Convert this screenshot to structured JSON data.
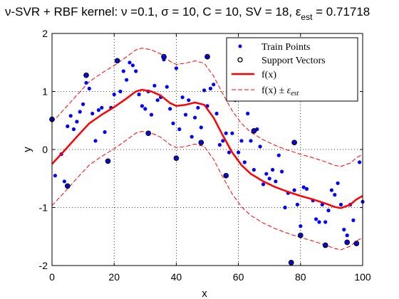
{
  "chart_data": {
    "type": "scatter",
    "title": "ν-SVR + RBF kernel: ν =0.1, σ = 10, C = 10, SV = 18, ε",
    "title_sub": "est",
    "title_tail": " = 0.71718",
    "xlabel": "x",
    "ylabel": "y",
    "xlim": [
      0,
      100
    ],
    "ylim": [
      -2,
      2
    ],
    "xticks": [
      0,
      20,
      40,
      60,
      80,
      100
    ],
    "yticks": [
      -2,
      -1,
      0,
      1,
      2
    ],
    "grid": true,
    "legend_position": "top-right",
    "colors": {
      "train": "#0000ff",
      "support": "#000000",
      "fx": "#ff0000",
      "band": "#ff0000",
      "grid": "#000000"
    },
    "legend": [
      {
        "label": "Train Points",
        "marker": "dot"
      },
      {
        "label": "Support Vectors",
        "marker": "circle"
      },
      {
        "label": "f(x)",
        "marker": "line"
      },
      {
        "label_main": "f(x) ± ",
        "label_eps": "ε",
        "label_sub": "est",
        "marker": "dashed"
      }
    ],
    "epsilon": 0.71718,
    "series": [
      {
        "name": "Train Points",
        "type": "scatter",
        "points": [
          [
            1,
            -0.45
          ],
          [
            3,
            -0.08
          ],
          [
            4,
            -0.55
          ],
          [
            5,
            0.4
          ],
          [
            6,
            0.58
          ],
          [
            7,
            0.35
          ],
          [
            8,
            0.48
          ],
          [
            9,
            0.65
          ],
          [
            10,
            0.78
          ],
          [
            11,
            1.15
          ],
          [
            12,
            1.05
          ],
          [
            13,
            0.62
          ],
          [
            14,
            0.15
          ],
          [
            15,
            0.68
          ],
          [
            16,
            0.72
          ],
          [
            17,
            0.3
          ],
          [
            19,
            0.72
          ],
          [
            20,
            0.95
          ],
          [
            22,
            1.0
          ],
          [
            23,
            1.35
          ],
          [
            24,
            1.2
          ],
          [
            25,
            1.5
          ],
          [
            26,
            1.45
          ],
          [
            27,
            1.35
          ],
          [
            28,
            0.95
          ],
          [
            29,
            0.75
          ],
          [
            30,
            0.7
          ],
          [
            31,
            1.0
          ],
          [
            32,
            0.6
          ],
          [
            33,
            1.1
          ],
          [
            34,
            0.85
          ],
          [
            35,
            0.9
          ],
          [
            36,
            1.55
          ],
          [
            37,
            1.08
          ],
          [
            38,
            0.7
          ],
          [
            39,
            0.45
          ],
          [
            40,
            1.4
          ],
          [
            41,
            0.35
          ],
          [
            42,
            0.9
          ],
          [
            43,
            0.6
          ],
          [
            44,
            0.85
          ],
          [
            45,
            0.22
          ],
          [
            46,
            0.55
          ],
          [
            47,
            0.72
          ],
          [
            48,
            0.38
          ],
          [
            49,
            1.02
          ],
          [
            50,
            0.75
          ],
          [
            51,
            1.05
          ],
          [
            52,
            1.12
          ],
          [
            53,
            0.62
          ],
          [
            54,
            0.08
          ],
          [
            55,
            0.15
          ],
          [
            56,
            0.28
          ],
          [
            57,
            -0.05
          ],
          [
            58,
            0.28
          ],
          [
            59,
            0.85
          ],
          [
            60,
            -0.05
          ],
          [
            61,
            0.15
          ],
          [
            62,
            -0.22
          ],
          [
            63,
            0.62
          ],
          [
            64,
            0.15
          ],
          [
            65,
            -0.35
          ],
          [
            66,
            0.35
          ],
          [
            67,
            0.05
          ],
          [
            68,
            -0.6
          ],
          [
            69,
            -0.42
          ],
          [
            70,
            -0.5
          ],
          [
            71,
            -0.35
          ],
          [
            72,
            -0.55
          ],
          [
            73,
            -0.1
          ],
          [
            74,
            -0.38
          ],
          [
            75,
            -1.0
          ],
          [
            76,
            -0.75
          ],
          [
            78,
            -0.7
          ],
          [
            79,
            -0.95
          ],
          [
            80,
            -1.32
          ],
          [
            81,
            -0.65
          ],
          [
            82,
            -0.68
          ],
          [
            84,
            -0.88
          ],
          [
            85,
            -1.2
          ],
          [
            86,
            -1.25
          ],
          [
            87,
            -0.95
          ],
          [
            88,
            -1.25
          ],
          [
            89,
            -1.05
          ],
          [
            90,
            -0.7
          ],
          [
            91,
            -0.78
          ],
          [
            92,
            -0.58
          ],
          [
            93,
            -0.95
          ],
          [
            94,
            -1.38
          ],
          [
            95,
            -1.48
          ],
          [
            96,
            -0.95
          ],
          [
            97,
            -1.22
          ],
          [
            99,
            -0.22
          ],
          [
            100,
            -0.9
          ]
        ]
      },
      {
        "name": "Support Vectors",
        "type": "scatter",
        "points": [
          [
            0,
            0.52
          ],
          [
            5,
            -0.63
          ],
          [
            11,
            1.28
          ],
          [
            18,
            -0.2
          ],
          [
            21,
            1.53
          ],
          [
            31,
            0.28
          ],
          [
            36,
            1.6
          ],
          [
            40,
            -0.15
          ],
          [
            48,
            0.12
          ],
          [
            50,
            1.6
          ],
          [
            56,
            -0.45
          ],
          [
            65,
            0.32
          ],
          [
            77,
            -1.95
          ],
          [
            78,
            0.12
          ],
          [
            80,
            -1.48
          ],
          [
            88,
            -1.65
          ],
          [
            95,
            -1.6
          ],
          [
            98,
            -1.62
          ]
        ]
      },
      {
        "name": "f(x)",
        "type": "line",
        "points": [
          [
            0,
            -0.25
          ],
          [
            4,
            -0.02
          ],
          [
            8,
            0.22
          ],
          [
            12,
            0.45
          ],
          [
            16,
            0.6
          ],
          [
            20,
            0.73
          ],
          [
            24,
            0.88
          ],
          [
            27,
            1.0
          ],
          [
            29,
            1.03
          ],
          [
            32,
            1.0
          ],
          [
            35,
            0.93
          ],
          [
            38,
            0.8
          ],
          [
            40,
            0.75
          ],
          [
            43,
            0.77
          ],
          [
            46,
            0.81
          ],
          [
            49,
            0.77
          ],
          [
            52,
            0.55
          ],
          [
            55,
            0.24
          ],
          [
            58,
            -0.05
          ],
          [
            61,
            -0.27
          ],
          [
            64,
            -0.42
          ],
          [
            68,
            -0.55
          ],
          [
            72,
            -0.65
          ],
          [
            76,
            -0.73
          ],
          [
            80,
            -0.8
          ],
          [
            84,
            -0.86
          ],
          [
            88,
            -0.93
          ],
          [
            91,
            -0.99
          ],
          [
            93,
            -1.01
          ],
          [
            96,
            -0.95
          ],
          [
            98,
            -0.86
          ],
          [
            100,
            -0.8
          ]
        ]
      }
    ]
  }
}
